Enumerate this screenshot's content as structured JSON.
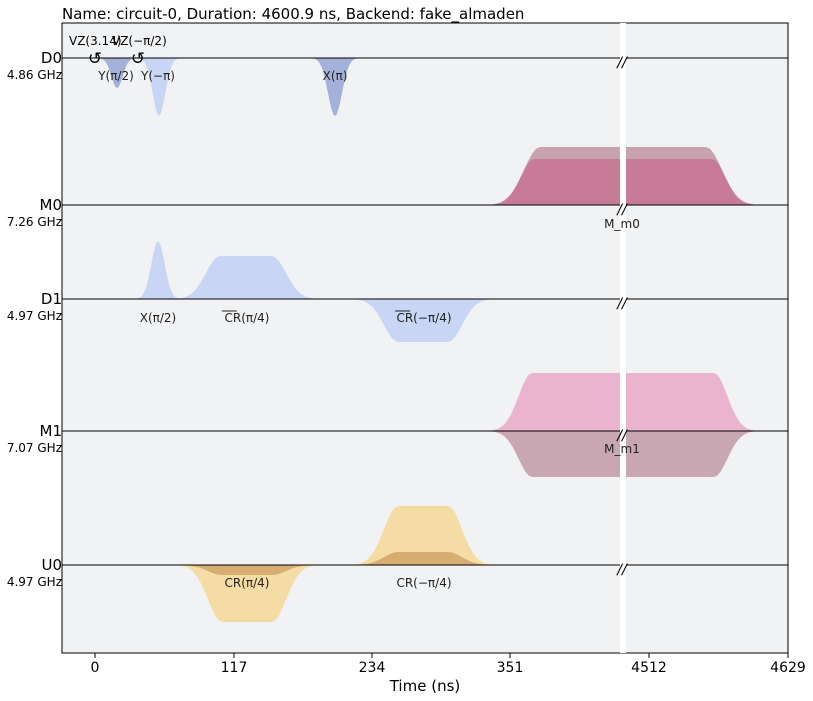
{
  "title": "Name: circuit-0, Duration: 4600.9 ns, Backend: fake_almaden",
  "xlabel": "Time (ns)",
  "chart_data": {
    "type": "pulse_schedule",
    "x_ticks": [
      {
        "label": "0",
        "t": 0
      },
      {
        "label": "117",
        "t": 117
      },
      {
        "label": "234",
        "t": 234
      },
      {
        "label": "351",
        "t": 351
      },
      {
        "label": "4512",
        "t": 4512
      },
      {
        "label": "4629",
        "t": 4629
      }
    ],
    "channels": [
      {
        "name": "D0",
        "freq": "4.86 GHz"
      },
      {
        "name": "M0",
        "freq": "7.26 GHz"
      },
      {
        "name": "D1",
        "freq": "4.97 GHz"
      },
      {
        "name": "M1",
        "freq": "7.07 GHz"
      },
      {
        "name": "U0",
        "freq": "4.97 GHz"
      }
    ],
    "frame_changes": [
      {
        "channel": "D0",
        "label": "VZ(3.14)"
      },
      {
        "channel": "D0",
        "label": "VZ(−π/2)"
      }
    ],
    "pulse_labels": [
      {
        "channel": "D0",
        "text": "Y(π/2)"
      },
      {
        "channel": "D0",
        "text": "Y(−π)"
      },
      {
        "channel": "D0",
        "text": "X(π)"
      },
      {
        "channel": "M0",
        "text": "M_m0"
      },
      {
        "channel": "D1",
        "text": "X(π/2)"
      },
      {
        "channel": "D1",
        "text": "CR(π/4)",
        "overline": true
      },
      {
        "channel": "D1",
        "text": "CR(−π/4)",
        "overline": true
      },
      {
        "channel": "M1",
        "text": "M_m1"
      },
      {
        "channel": "U0",
        "text": "CR(π/4)"
      },
      {
        "channel": "U0",
        "text": "CR(−π/4)"
      }
    ],
    "colors": {
      "d_channel": "#c8d5f5",
      "d_channel_dark": "#a4b1d8",
      "m0_light": "#c7a3ae",
      "m0_dark": "#c77b97",
      "m1_light": "#eab4cf",
      "m1_dark": "#c9a7b2",
      "u_light": "#f5dca4",
      "u_dark": "#d8ad72",
      "background": "#f1f2f4"
    }
  }
}
